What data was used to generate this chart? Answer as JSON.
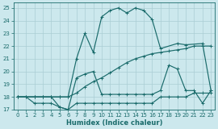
{
  "xlabel": "Humidex (Indice chaleur)",
  "bg_color": "#cce8ed",
  "grid_color": "#aacdd4",
  "line_color": "#1a6b6b",
  "xlim": [
    -0.5,
    23.5
  ],
  "ylim": [
    17,
    25.4
  ],
  "xticks": [
    0,
    1,
    2,
    3,
    4,
    5,
    6,
    7,
    8,
    9,
    10,
    11,
    12,
    13,
    14,
    15,
    16,
    17,
    18,
    19,
    20,
    21,
    22,
    23
  ],
  "yticks": [
    17,
    18,
    19,
    20,
    21,
    22,
    23,
    24,
    25
  ],
  "line_peak": {
    "x": [
      0,
      2,
      3,
      4,
      5,
      6,
      7,
      8,
      9,
      10,
      11,
      12,
      13,
      14,
      15,
      16,
      17,
      19,
      20,
      22,
      23
    ],
    "y": [
      18,
      18,
      18,
      18,
      18,
      18,
      21,
      23,
      21.5,
      24.3,
      24.8,
      25.0,
      24.6,
      25.0,
      24.8,
      24.1,
      21.8,
      22.2,
      22.1,
      22.2,
      18.5
    ]
  },
  "line_rise": {
    "x": [
      0,
      1,
      2,
      3,
      4,
      5,
      6,
      7,
      8,
      9,
      10,
      11,
      12,
      13,
      14,
      15,
      16,
      17,
      18,
      19,
      20,
      21,
      22,
      23
    ],
    "y": [
      18,
      18,
      18,
      18,
      18,
      18,
      18,
      18.3,
      18.8,
      19.2,
      19.5,
      19.9,
      20.3,
      20.7,
      21.0,
      21.2,
      21.4,
      21.5,
      21.6,
      21.7,
      21.8,
      22.0,
      22.0,
      22.0
    ]
  },
  "line_mid": {
    "x": [
      0,
      2,
      3,
      4,
      5,
      6,
      7,
      8,
      9,
      10,
      11,
      12,
      13,
      14,
      15,
      16,
      17,
      18,
      19,
      20,
      21,
      22,
      23
    ],
    "y": [
      18,
      18,
      18,
      18,
      17.2,
      17.0,
      19.5,
      19.8,
      20.0,
      18.2,
      18.2,
      18.2,
      18.2,
      18.2,
      18.2,
      18.2,
      18.5,
      20.5,
      20.2,
      18.5,
      18.5,
      17.5,
      18.5
    ]
  },
  "line_flat": {
    "x": [
      0,
      1,
      2,
      3,
      4,
      5,
      6,
      7,
      8,
      9,
      10,
      11,
      12,
      13,
      14,
      15,
      16,
      17,
      18,
      19,
      20,
      21,
      22,
      23
    ],
    "y": [
      18,
      18,
      17.5,
      17.5,
      17.5,
      17.2,
      17.0,
      17.5,
      17.5,
      17.5,
      17.5,
      17.5,
      17.5,
      17.5,
      17.5,
      17.5,
      17.5,
      18,
      18,
      18,
      18,
      18.3,
      18.3,
      18.3
    ]
  }
}
